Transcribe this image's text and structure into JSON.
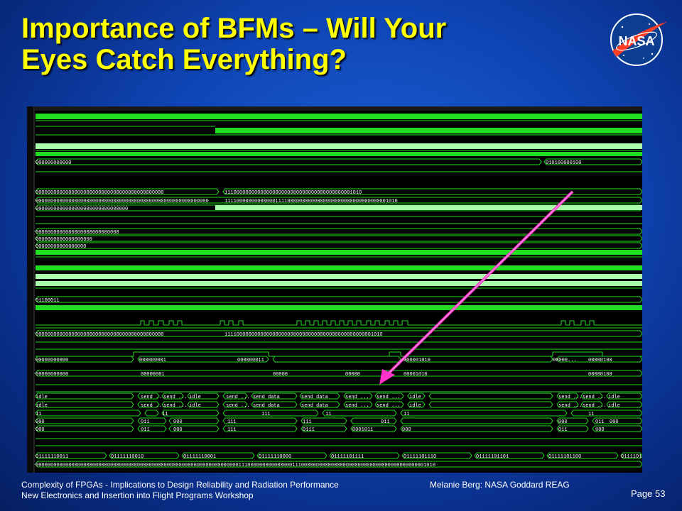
{
  "slide": {
    "title_line1": "Importance of BFMs – Will Your",
    "title_line2": "Eyes Catch Everything?",
    "footer_line1": "Complexity of FPGAs - Implications to Design Reliability and Radiation Performance",
    "footer_line2": "New Electronics and Insertion into Flight Programs Workshop",
    "author": "Melanie Berg: NASA Goddard REAG",
    "page": "Page 53",
    "logo_text": "NASA"
  },
  "colors": {
    "title": "#ffff00",
    "signal": "#22dd22",
    "bus_light": "#aaffaa",
    "arrow": "#ff33cc",
    "wave_bg": "#000000"
  },
  "waveform": {
    "bus_labels": [
      "000000000000",
      "010100000100",
      "0000000000000000000000000000000000000000000",
      "1110000000000000000000000000000000000000001010",
      "0000000000000000000000000000000000000000000000000000000000",
      "1111000000000000011110000000000000000000000000000000001010",
      "0000000000000000000000000000000",
      "0000000000000000000000000000",
      "0000000000000000000",
      "00000000000000000",
      "01100011",
      "0000000000000000000000000000000000000000000",
      "11110000000000000000000000000000000000000000000001010",
      "00000000000",
      "000000001",
      "000000011",
      "000001010",
      "00000...",
      "00000100",
      "00000000000",
      "00000001",
      "00000",
      "00000",
      "00001010",
      "00000100",
      "idle",
      "send ...",
      "send ...",
      "idle",
      "send ...",
      "send data",
      "send data",
      "send ...",
      "send ...",
      "idle",
      "send ...",
      "send ...",
      "idle",
      "idle",
      "send ...",
      "send ...",
      "idle",
      "send ...",
      "send data",
      "send data",
      "send ...",
      "send ...",
      "idle",
      "send ...",
      "send ...",
      "idle",
      "11",
      "11",
      "111",
      "11",
      "11",
      "11",
      "000",
      "011",
      "000",
      "111",
      "111",
      "011",
      "000",
      "011",
      "000",
      "000",
      "011",
      "000",
      "111",
      "0111",
      "0001011",
      "000",
      "011",
      "000",
      "01111110011",
      "01111110010",
      "01111110001",
      "01111110000",
      "01111101111",
      "01111101110",
      "01111101101",
      "01111101100",
      "0111101",
      "00000000000000000000000000000000000000000000000000000000000000000000111000000000000000111000000000000000000000000000000000000000001010"
    ]
  }
}
